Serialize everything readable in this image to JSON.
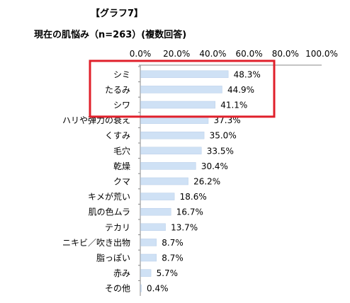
{
  "header": {
    "title": "【グラフ7】",
    "subtitle": "現在の肌悩み（n=263）(複数回答)"
  },
  "chart_data": {
    "type": "bar",
    "orientation": "horizontal",
    "title": "【グラフ7】",
    "subtitle": "現在の肌悩み（n=263）(複数回答)",
    "categories": [
      "シミ",
      "たるみ",
      "シワ",
      "ハリや弾力の衰え",
      "くすみ",
      "毛穴",
      "乾燥",
      "クマ",
      "キメが荒い",
      "肌の色ムラ",
      "テカリ",
      "ニキビ／吹き出物",
      "脂っぽい",
      "赤み",
      "その他"
    ],
    "values": [
      48.3,
      44.9,
      41.1,
      37.3,
      35.0,
      33.5,
      30.4,
      26.2,
      18.6,
      16.7,
      13.7,
      8.7,
      8.7,
      5.7,
      0.4
    ],
    "value_labels": [
      "48.3%",
      "44.9%",
      "41.1%",
      "37.3%",
      "35.0%",
      "33.5%",
      "30.4%",
      "26.2%",
      "18.6%",
      "16.7%",
      "13.7%",
      "8.7%",
      "8.7%",
      "5.7%",
      "0.4%"
    ],
    "xlim": [
      0,
      100
    ],
    "xticks": [
      "0.0%",
      "20.0%",
      "40.0%",
      "60.0%",
      "80.0%",
      "100.0%"
    ],
    "xlabel": "",
    "ylabel": "",
    "grid": false,
    "legend": "none",
    "highlight_top_n": 3,
    "colors": {
      "bar": "#cfe1f5",
      "bar_stroke": "#b7cde8",
      "highlight_box": "#e0202b",
      "axis": "#888888"
    }
  }
}
